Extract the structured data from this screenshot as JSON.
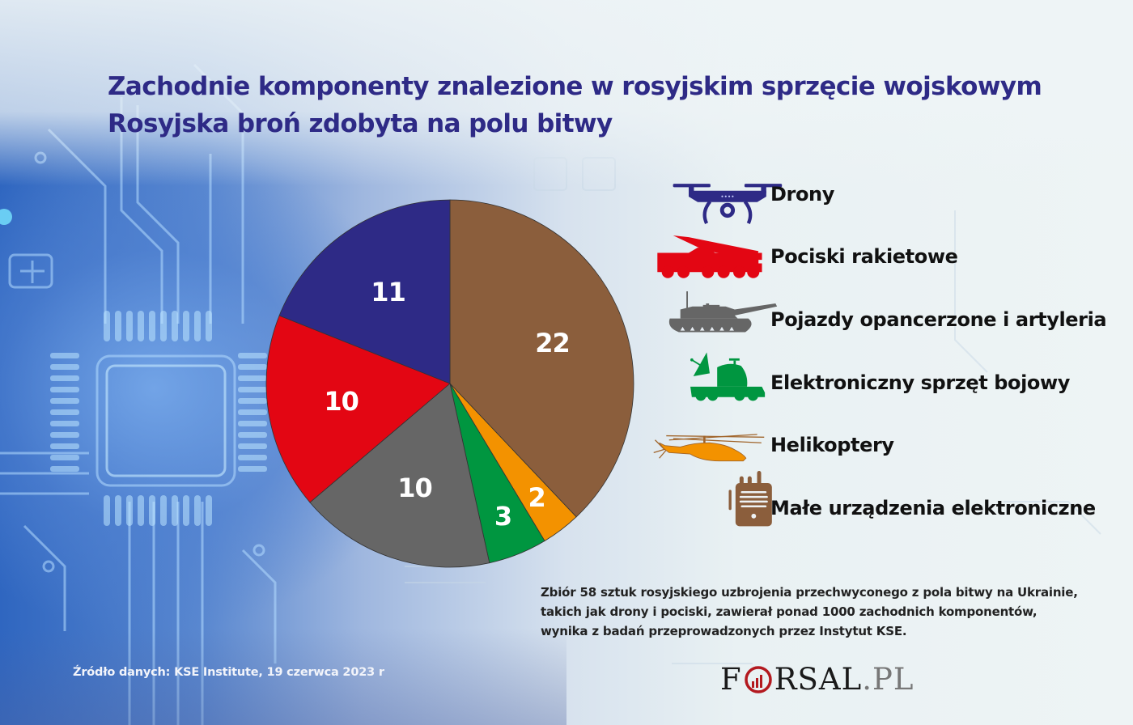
{
  "header": {
    "title_line1": "Zachodnie komponenty znalezione w rosyjskim sprzęcie wojskowym",
    "title_line2": "Rosyjska broń zdobyta na polu bitwy"
  },
  "legend": [
    {
      "label": "Drony",
      "icon": "drone-icon",
      "color": "#2e2a86"
    },
    {
      "label": "Pociski rakietowe",
      "icon": "missile-launcher-icon",
      "color": "#e30613"
    },
    {
      "label": "Pojazdy opancerzone i artyleria",
      "icon": "tank-icon",
      "color": "#666666"
    },
    {
      "label": "Elektroniczny sprzęt bojowy",
      "icon": "radar-vehicle-icon",
      "color": "#009640"
    },
    {
      "label": "Helikoptery",
      "icon": "helicopter-icon",
      "color": "#f39200"
    },
    {
      "label": "Małe urządzenia elektroniczne",
      "icon": "radio-device-icon",
      "color": "#8b5e3c"
    }
  ],
  "note": "Zbiór 58 sztuk rosyjskiego uzbrojenia przechwyconego z pola bitwy na Ukrainie,\ntakich jak drony i pociski, zawierał ponad 1000 zachodnich komponentów,\nwynika z badań przeprowadzonych przez Instytut KSE.",
  "footer": {
    "source": "Źródło  danych: KSE Institute, 19 czerwca 2023 r",
    "logo_main": "F",
    "logo_rest": "RSAL",
    "logo_suffix": ".PL"
  },
  "chart_data": {
    "type": "pie",
    "title": "Zachodnie komponenty znalezione w rosyjskim sprzęcie wojskowym",
    "subtitle": "Rosyjska broń zdobyta na polu bitwy",
    "categories": [
      "Małe urządzenia elektroniczne",
      "Helikoptery",
      "Elektroniczny sprzęt bojowy",
      "Pojazdy opancerzone i artyleria",
      "Pociski rakietowe",
      "Drony"
    ],
    "values": [
      22,
      2,
      3,
      10,
      10,
      11
    ],
    "colors": [
      "#8b5e3c",
      "#f39200",
      "#009640",
      "#666666",
      "#e30613",
      "#2e2a86"
    ],
    "total": 58,
    "start_angle": "12 o'clock, clockwise",
    "legend_position": "right"
  }
}
